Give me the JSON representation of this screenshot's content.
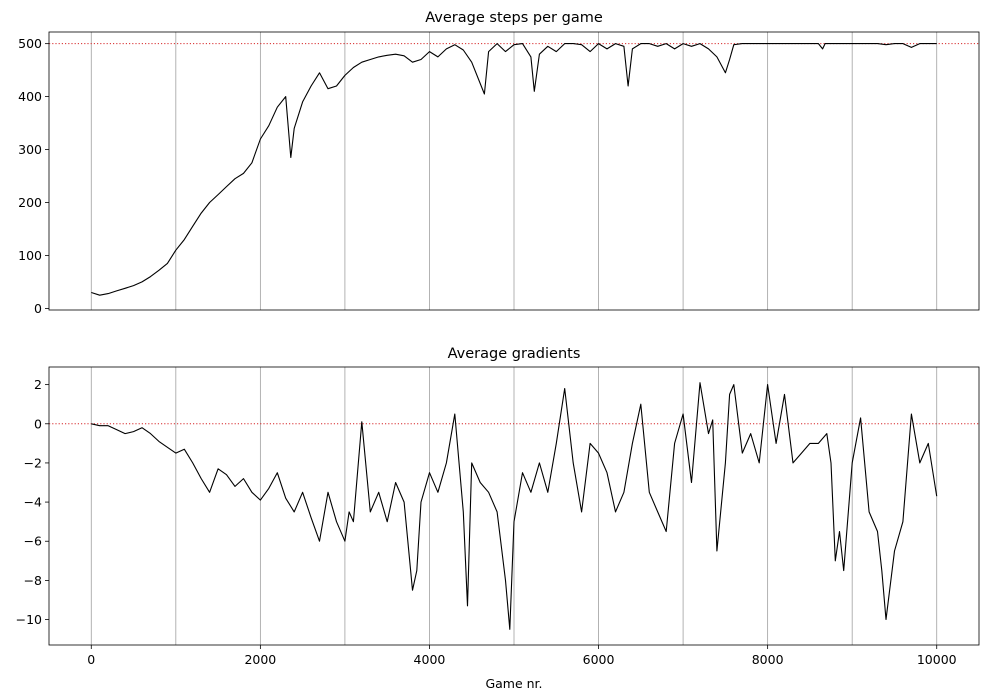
{
  "chart_data": [
    {
      "type": "line",
      "title": "Average steps per game",
      "xlabel": "",
      "ylabel": "",
      "xlim": [
        -500,
        10500
      ],
      "ylim": [
        -3,
        522
      ],
      "x_ticks": [
        0,
        1000,
        2000,
        3000,
        4000,
        5000,
        6000,
        7000,
        8000,
        9000,
        10000
      ],
      "x_tick_labels_visible": false,
      "y_ticks": [
        0,
        100,
        200,
        300,
        400,
        500
      ],
      "y_tick_labels": [
        "0",
        "100",
        "200",
        "300",
        "400",
        "500"
      ],
      "vertical_grid": true,
      "reference_line": {
        "y": 500,
        "color": "#d62728",
        "style": "dotted"
      },
      "line_color": "#000000",
      "series": [
        {
          "x": [
            0,
            100,
            200,
            300,
            400,
            500,
            600,
            700,
            800,
            900,
            1000,
            1100,
            1200,
            1300,
            1400,
            1500,
            1600,
            1700,
            1800,
            1900,
            2000,
            2100,
            2200,
            2300,
            2360,
            2400,
            2500,
            2600,
            2700,
            2800,
            2900,
            3000,
            3100,
            3200,
            3300,
            3400,
            3500,
            3600,
            3700,
            3800,
            3900,
            4000,
            4100,
            4200,
            4300,
            4400,
            4500,
            4650,
            4700,
            4800,
            4900,
            5000,
            5100,
            5200,
            5240,
            5300,
            5400,
            5500,
            5600,
            5700,
            5800,
            5900,
            6000,
            6100,
            6200,
            6300,
            6350,
            6400,
            6500,
            6600,
            6700,
            6800,
            6900,
            7000,
            7100,
            7200,
            7300,
            7400,
            7500,
            7550,
            7600,
            7700,
            7800,
            7900,
            8000,
            8200,
            8400,
            8600,
            8650,
            8680,
            8700,
            8800,
            8900,
            9000,
            9100,
            9150,
            9200,
            9300,
            9400,
            9500,
            9600,
            9700,
            9800,
            9900,
            10000
          ],
          "y": [
            30,
            25,
            28,
            33,
            38,
            43,
            50,
            60,
            72,
            85,
            110,
            130,
            155,
            180,
            200,
            215,
            230,
            245,
            255,
            275,
            320,
            345,
            380,
            400,
            285,
            340,
            390,
            420,
            445,
            415,
            420,
            440,
            455,
            465,
            470,
            475,
            478,
            480,
            477,
            465,
            470,
            485,
            475,
            490,
            498,
            488,
            465,
            405,
            485,
            500,
            485,
            498,
            500,
            475,
            410,
            480,
            495,
            485,
            500,
            500,
            498,
            485,
            500,
            490,
            500,
            495,
            420,
            490,
            500,
            500,
            495,
            500,
            490,
            500,
            495,
            500,
            490,
            475,
            445,
            470,
            498,
            500,
            500,
            500,
            500,
            500,
            500,
            500,
            490,
            500,
            500,
            500,
            500,
            500,
            500,
            500,
            500,
            500,
            498,
            500,
            500,
            493,
            500,
            500,
            500
          ]
        }
      ]
    },
    {
      "type": "line",
      "title": "Average gradients",
      "xlabel": "Game nr.",
      "ylabel": "",
      "xlim": [
        -500,
        10500
      ],
      "ylim": [
        -11.3,
        2.9
      ],
      "x_ticks": [
        0,
        2000,
        4000,
        6000,
        8000,
        10000
      ],
      "x_tick_labels": [
        "0",
        "2000",
        "4000",
        "6000",
        "8000",
        "10000"
      ],
      "y_ticks": [
        -10,
        -8,
        -6,
        -4,
        -2,
        0,
        2
      ],
      "y_tick_labels": [
        "−10",
        "−8",
        "−6",
        "−4",
        "−2",
        "0",
        "2"
      ],
      "vertical_grid": true,
      "grid_x": [
        0,
        1000,
        2000,
        3000,
        4000,
        5000,
        6000,
        7000,
        8000,
        9000,
        10000
      ],
      "reference_line": {
        "y": 0,
        "color": "#d62728",
        "style": "dotted"
      },
      "line_color": "#000000",
      "series": [
        {
          "x": [
            0,
            100,
            200,
            300,
            400,
            500,
            600,
            700,
            800,
            900,
            1000,
            1100,
            1200,
            1300,
            1400,
            1500,
            1600,
            1700,
            1800,
            1900,
            2000,
            2100,
            2200,
            2300,
            2400,
            2500,
            2600,
            2700,
            2800,
            2900,
            3000,
            3050,
            3100,
            3200,
            3300,
            3400,
            3500,
            3600,
            3700,
            3800,
            3850,
            3900,
            4000,
            4100,
            4200,
            4300,
            4400,
            4450,
            4500,
            4600,
            4700,
            4800,
            4900,
            4950,
            5000,
            5100,
            5200,
            5300,
            5400,
            5500,
            5600,
            5700,
            5800,
            5900,
            6000,
            6100,
            6200,
            6300,
            6400,
            6500,
            6600,
            6700,
            6800,
            6900,
            7000,
            7100,
            7200,
            7300,
            7350,
            7400,
            7500,
            7550,
            7600,
            7700,
            7800,
            7900,
            8000,
            8100,
            8200,
            8300,
            8400,
            8500,
            8600,
            8700,
            8750,
            8800,
            8850,
            8900,
            9000,
            9100,
            9200,
            9300,
            9350,
            9400,
            9500,
            9600,
            9700,
            9800,
            9900,
            10000
          ],
          "y": [
            0,
            -0.1,
            -0.1,
            -0.3,
            -0.5,
            -0.4,
            -0.2,
            -0.5,
            -0.9,
            -1.2,
            -1.5,
            -1.3,
            -2.0,
            -2.8,
            -3.5,
            -2.3,
            -2.6,
            -3.2,
            -2.8,
            -3.5,
            -3.9,
            -3.3,
            -2.5,
            -3.8,
            -4.5,
            -3.5,
            -4.8,
            -6.0,
            -3.5,
            -5.0,
            -6.0,
            -4.5,
            -5.0,
            0.1,
            -4.5,
            -3.5,
            -5.0,
            -3.0,
            -4.0,
            -8.5,
            -7.5,
            -4.0,
            -2.5,
            -3.5,
            -2.0,
            0.5,
            -4.5,
            -9.3,
            -2.0,
            -3.0,
            -3.5,
            -4.5,
            -8.0,
            -10.5,
            -5.0,
            -2.5,
            -3.5,
            -2.0,
            -3.5,
            -1.0,
            1.8,
            -2.0,
            -4.5,
            -1.0,
            -1.5,
            -2.5,
            -4.5,
            -3.5,
            -1.0,
            1.0,
            -3.5,
            -4.5,
            -5.5,
            -1.0,
            0.5,
            -3.0,
            2.1,
            -0.5,
            0.2,
            -6.5,
            -2.0,
            1.5,
            2.0,
            -1.5,
            -0.5,
            -2.0,
            2.0,
            -1.0,
            1.5,
            -2.0,
            -1.5,
            -1.0,
            -1.0,
            -0.5,
            -2.0,
            -7.0,
            -5.5,
            -7.5,
            -2.0,
            0.3,
            -4.5,
            -5.5,
            -7.5,
            -10.0,
            -6.5,
            -5.0,
            0.5,
            -2.0,
            -1.0,
            -3.7
          ]
        }
      ]
    }
  ]
}
